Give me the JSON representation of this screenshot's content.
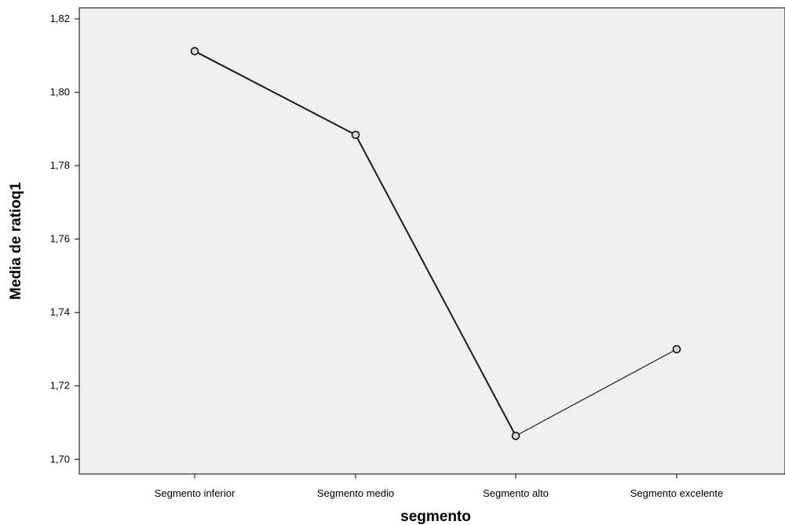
{
  "chart_data": {
    "type": "line",
    "categories": [
      "Segmento inferior",
      "Segmento medio",
      "Segmento alto",
      "Segmento excelente"
    ],
    "series": [
      {
        "values": [
          1.8112,
          1.7884,
          1.7064,
          1.73
        ]
      }
    ],
    "xlabel": "segmento",
    "ylabel": "Media de ratioq1",
    "ylim": [
      1.696,
      1.823
    ],
    "yticks": [
      1.7,
      1.72,
      1.74,
      1.76,
      1.78,
      1.8,
      1.82
    ],
    "ytick_labels": [
      "1,70",
      "1,72",
      "1,74",
      "1,76",
      "1,78",
      "1,80",
      "1,82"
    ],
    "grid": false,
    "colors": {
      "plot_background": "#efefef",
      "line": "#1a1a1a",
      "marker_fill": "#d8d8d8"
    }
  }
}
